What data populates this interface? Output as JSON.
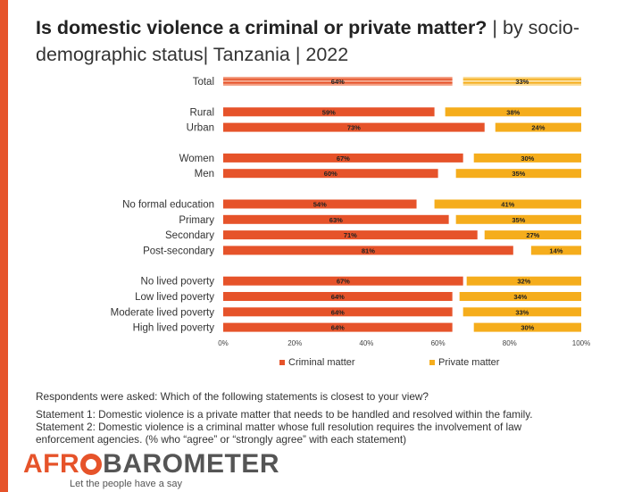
{
  "title": {
    "bold": "Is domestic violence a criminal or private matter?",
    "rest": " | by socio-demographic status| Tanzania | 2022"
  },
  "chart_data": {
    "type": "bar",
    "orientation": "horizontal",
    "stacked": true,
    "categories": [
      "Total",
      "Rural",
      "Urban",
      "Women",
      "Men",
      "No formal education",
      "Primary",
      "Secondary",
      "Post-secondary",
      "No lived poverty",
      "Low lived poverty",
      "Moderate lived poverty",
      "High lived poverty"
    ],
    "groups": [
      [
        "Total"
      ],
      [
        "Rural",
        "Urban"
      ],
      [
        "Women",
        "Men"
      ],
      [
        "No formal education",
        "Primary",
        "Secondary",
        "Post-secondary"
      ],
      [
        "No lived poverty",
        "Low lived poverty",
        "Moderate lived poverty",
        "High lived poverty"
      ]
    ],
    "series": [
      {
        "name": "Criminal matter",
        "color": "#e6532a",
        "values": [
          64,
          59,
          73,
          67,
          60,
          54,
          63,
          71,
          81,
          67,
          64,
          64,
          64
        ],
        "labels": [
          "64%",
          "59%",
          "73%",
          "67%",
          "60%",
          "54%",
          "63%",
          "71%",
          "81%",
          "67%",
          "64%",
          "64%",
          "64%"
        ]
      },
      {
        "name": "Private matter",
        "color": "#f5ad1c",
        "values": [
          33,
          38,
          24,
          30,
          35,
          41,
          35,
          27,
          14,
          32,
          34,
          33,
          30
        ],
        "labels": [
          "33%",
          "38%",
          "24%",
          "30%",
          "35%",
          "41%",
          "35%",
          "27%",
          "14%",
          "32%",
          "34%",
          "33%",
          "30%"
        ]
      }
    ],
    "private_anchored_right": true,
    "xlim": [
      0,
      100
    ],
    "xticks": [
      "0%",
      "20%",
      "40%",
      "60%",
      "80%",
      "100%"
    ],
    "legend_position": "bottom",
    "total_bar_style": "striped"
  },
  "notes": {
    "line1": "Respondents were asked: Which of the following statements is closest to your view?",
    "line2": " Statement 1: Domestic violence is a private matter that needs to be handled and resolved within the family.",
    "line3": "Statement 2: Domestic violence is a criminal matter whose full resolution requires the involvement of law",
    "line4": "enforcement agencies. (% who “agree” or “strongly agree” with each statement)"
  },
  "logo": {
    "part1": "AFR",
    "part2": "BAROMETER",
    "tagline": "Let the people have a say"
  }
}
